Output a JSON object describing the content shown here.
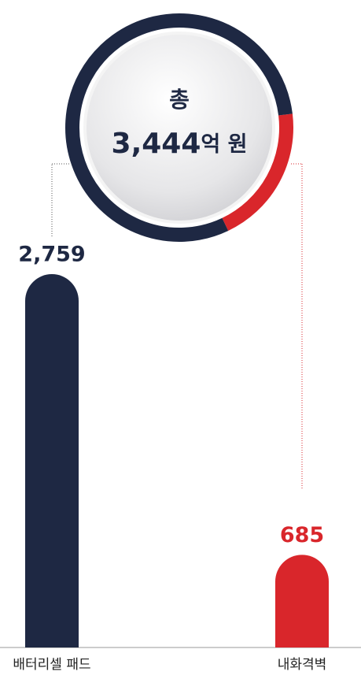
{
  "chart_data": {
    "type": "bar",
    "categories": [
      "배터리셀 패드",
      "내화격벽"
    ],
    "values": [
      2759,
      685
    ],
    "value_labels": [
      "2,759",
      "685"
    ],
    "colors": [
      "#1e2843",
      "#d9262b"
    ],
    "total_prefix": "총",
    "total": {
      "value": 3444,
      "label": "3,444"
    },
    "unit": "억 원"
  }
}
